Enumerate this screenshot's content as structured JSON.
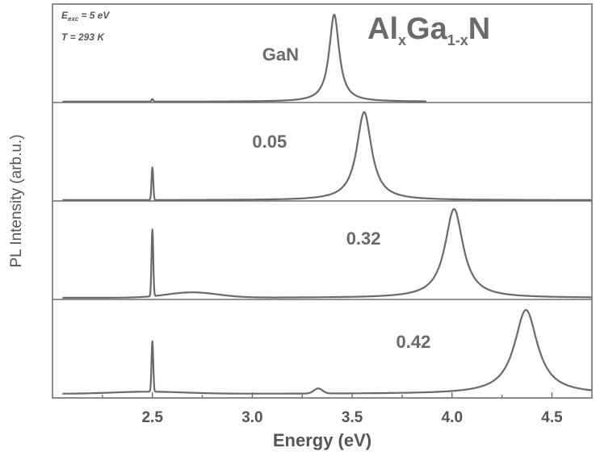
{
  "chart_data": {
    "type": "line",
    "title_parts": {
      "a": "Al",
      "x1": "x",
      "b": "Ga",
      "sub": "1-x",
      "c": "N"
    },
    "conditions": {
      "exc": "E",
      "exc_sub": "exc",
      "exc_val": "= 5 eV",
      "temp": "T = 293 K"
    },
    "xlabel": "Energy (eV)",
    "ylabel": "PL Intensity (arb.u.)",
    "xlim": [
      2.0,
      4.7
    ],
    "xticks": [
      "2.5",
      "3.0",
      "3.5",
      "4.0",
      "4.5"
    ],
    "xtick_values": [
      2.5,
      3.0,
      3.5,
      4.0,
      4.5
    ],
    "grid": false,
    "layout": "stacked panels, one spectrum per panel",
    "series": [
      {
        "name": "GaN",
        "x_range": [
          2.05,
          3.87
        ],
        "peak_energy": 3.41,
        "peak_fwhm": 0.06,
        "peak_height": 1.0,
        "spike_energy": 2.5,
        "spike_height": 0.03,
        "label_energy": 3.05
      },
      {
        "name": "0.05",
        "x_range": [
          2.05,
          4.7
        ],
        "peak_energy": 3.56,
        "peak_fwhm": 0.09,
        "peak_height": 1.0,
        "spike_energy": 2.5,
        "spike_height": 0.37,
        "label_energy": 3.0
      },
      {
        "name": "0.32",
        "x_range": [
          2.05,
          4.7
        ],
        "peak_energy": 4.01,
        "peak_fwhm": 0.11,
        "peak_height": 1.0,
        "spike_energy": 2.5,
        "spike_height": 0.75,
        "broad_energy": 2.7,
        "broad_height": 0.06,
        "label_energy": 3.47
      },
      {
        "name": "0.42",
        "x_range": [
          2.05,
          4.7
        ],
        "peak_energy": 4.37,
        "peak_fwhm": 0.14,
        "peak_height": 1.0,
        "spike_energy": 2.5,
        "spike_height": 0.6,
        "minor_energy": 3.33,
        "minor_height": 0.06,
        "label_energy": 3.72
      }
    ]
  }
}
